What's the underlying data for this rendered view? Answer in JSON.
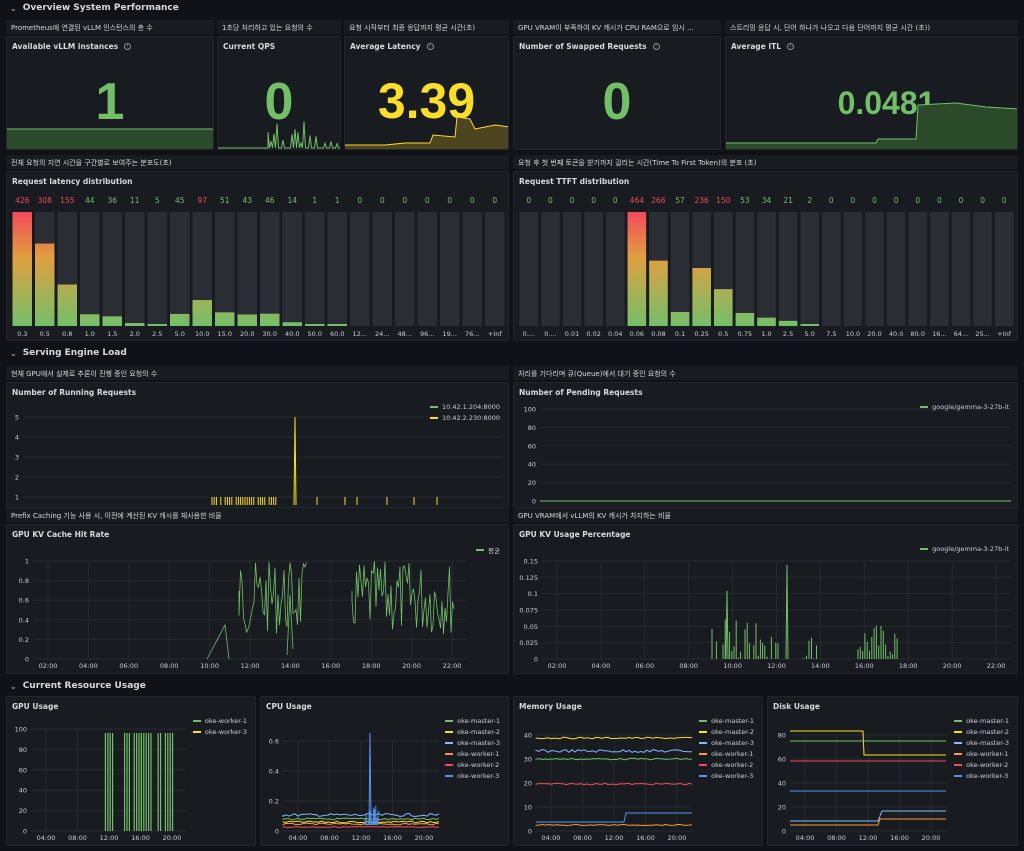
{
  "rows": {
    "overview": "Overview System Performance",
    "serving": "Serving Engine Load",
    "resource": "Current Resource Usage"
  },
  "descs": {
    "instances": "Prometheus에 연결된 vLLM 인스턴스의 총 수",
    "qps": "1초당 처리하고 있는 요청의 수",
    "latency": "요청 시작부터 최종 응답까지 평균 시간(초)",
    "swapped": "GPU VRAM이 부족하여 KV 캐시가 CPU RAM으로 임시 ...",
    "itl": "스트리밍 응답 시, 단어 하나가 나오고 다음 단어까지 평균 시간 (초))",
    "latdist": "전체 요청의 지연 시간을 구간별로 보여주는 분포도(초)",
    "ttft": "요청 후 첫 번째 토큰을 받기까지 걸리는 시간(Time To First Token)의 분포 (초)",
    "running": "현재 GPU에서 실제로 추론이 진행 중인 요청의 수",
    "pending": "처리를 기다리며 큐(Queue)에서 대기 중인 요청의 수",
    "hitrate": "Prefix Caching 기능 사용 시, 이전에 계산된 KV 캐시를 재사용한 비율",
    "kvusage": "GPU VRAM에서 vLLM의 KV 캐시가 차지하는 비율"
  },
  "stats": {
    "instances": {
      "title": "Available vLLM instances",
      "value": "1",
      "color": "#73bf69"
    },
    "qps": {
      "title": "Current QPS",
      "value": "0",
      "color": "#73bf69"
    },
    "latency": {
      "title": "Average Latency",
      "value": "3.39",
      "color": "#fade2a"
    },
    "swapped": {
      "title": "Number of Swapped Requests",
      "value": "0",
      "color": "#73bf69"
    },
    "itl": {
      "title": "Average ITL",
      "value": "0.0481",
      "color": "#73bf69"
    }
  },
  "latdist": {
    "title": "Request latency distribution",
    "labels": [
      "0.3",
      "0.5",
      "0.8",
      "1.0",
      "1.5",
      "2.0",
      "2.5",
      "5.0",
      "10.0",
      "15.0",
      "20.0",
      "30.0",
      "40.0",
      "50.0",
      "60.0",
      "12...",
      "24...",
      "48...",
      "96...",
      "19...",
      "76...",
      "+Inf"
    ],
    "values": [
      426,
      308,
      155,
      44,
      36,
      11,
      5,
      45,
      97,
      51,
      43,
      46,
      14,
      1,
      1,
      0,
      0,
      0,
      0,
      0,
      0,
      0
    ]
  },
  "ttft": {
    "title": "Request TTFT distribution",
    "labels": [
      "0....",
      "0....",
      "0.01",
      "0.02",
      "0.04",
      "0.06",
      "0.08",
      "0.1",
      "0.25",
      "0.5",
      "0.75",
      "1.0",
      "2.5",
      "5.0",
      "7.5",
      "10.0",
      "20.0",
      "40.0",
      "80.0",
      "16...",
      "64...",
      "25...",
      "+Inf"
    ],
    "values": [
      0,
      0,
      0,
      0,
      0,
      464,
      266,
      57,
      236,
      150,
      53,
      34,
      21,
      2,
      0,
      0,
      0,
      0,
      0,
      0,
      0,
      0,
      0
    ]
  },
  "running": {
    "title": "Number of Running Requests",
    "yticks": [
      "5",
      "4",
      "3",
      "2",
      "1"
    ],
    "legend": [
      {
        "name": "10.42.1.204:8000",
        "color": "#73bf69"
      },
      {
        "name": "10.42.2.230:8000",
        "color": "#fade2a"
      }
    ]
  },
  "pending": {
    "title": "Number of Pending Requests",
    "yticks": [
      "100",
      "80",
      "60",
      "40",
      "20",
      "0"
    ],
    "legend": [
      {
        "name": "google/gemma-3-27b-it",
        "color": "#73bf69"
      }
    ]
  },
  "hitrate": {
    "title": "GPU KV Cache Hit Rate",
    "yticks": [
      "1",
      "0.8",
      "0.6",
      "0.4",
      "0.2",
      "0"
    ],
    "xticks": [
      "02:00",
      "04:00",
      "06:00",
      "08:00",
      "10:00",
      "12:00",
      "14:00",
      "16:00",
      "18:00",
      "20:00",
      "22:00"
    ],
    "legend": [
      {
        "name": "평균",
        "color": "#73bf69"
      }
    ]
  },
  "kvusage": {
    "title": "GPU KV Usage Percentage",
    "yticks": [
      "0.15",
      "0.125",
      "0.1",
      "0.075",
      "0.05",
      "0.025",
      "0"
    ],
    "xticks": [
      "02:00",
      "04:00",
      "06:00",
      "08:00",
      "10:00",
      "12:00",
      "14:00",
      "16:00",
      "18:00",
      "20:00",
      "22:00"
    ],
    "legend": [
      {
        "name": "google/gemma-3-27b-it",
        "color": "#73bf69"
      }
    ]
  },
  "gpu": {
    "title": "GPU Usage",
    "yticks": [
      "100",
      "80",
      "60",
      "40",
      "20",
      "0"
    ],
    "xticks": [
      "04:00",
      "08:00",
      "12:00",
      "16:00",
      "20:00"
    ],
    "legend": [
      {
        "name": "oke-worker-1",
        "color": "#73bf69"
      },
      {
        "name": "oke-worker-3",
        "color": "#fade2a"
      }
    ]
  },
  "cpu": {
    "title": "CPU Usage",
    "yticks": [
      "0.6",
      "0.4",
      "0.2",
      "0"
    ],
    "xticks": [
      "04:00",
      "08:00",
      "12:00",
      "16:00",
      "20:00"
    ],
    "legend": [
      {
        "name": "oke-master-1",
        "color": "#73bf69"
      },
      {
        "name": "oke-master-2",
        "color": "#fade2a"
      },
      {
        "name": "oke-master-3",
        "color": "#8ab8ff"
      },
      {
        "name": "oke-worker-1",
        "color": "#ff9830"
      },
      {
        "name": "oke-worker-2",
        "color": "#f2495c"
      },
      {
        "name": "oke-worker-3",
        "color": "#5794f2"
      }
    ]
  },
  "memory": {
    "title": "Memory Usage",
    "yticks": [
      "40",
      "30",
      "20",
      "10",
      "0"
    ],
    "xticks": [
      "04:00",
      "08:00",
      "12:00",
      "16:00",
      "20:00"
    ],
    "legend": [
      {
        "name": "oke-master-1",
        "color": "#73bf69"
      },
      {
        "name": "oke-master-2",
        "color": "#fade2a"
      },
      {
        "name": "oke-master-3",
        "color": "#8ab8ff"
      },
      {
        "name": "oke-worker-1",
        "color": "#ff9830"
      },
      {
        "name": "oke-worker-2",
        "color": "#f2495c"
      },
      {
        "name": "oke-worker-3",
        "color": "#5794f2"
      }
    ]
  },
  "disk": {
    "title": "Disk Usage",
    "yticks": [
      "80",
      "60",
      "40",
      "20",
      "0"
    ],
    "xticks": [
      "04:00",
      "08:00",
      "12:00",
      "16:00",
      "20:00"
    ],
    "legend": [
      {
        "name": "oke-master-1",
        "color": "#73bf69"
      },
      {
        "name": "oke-master-2",
        "color": "#fade2a"
      },
      {
        "name": "oke-master-3",
        "color": "#8ab8ff"
      },
      {
        "name": "oke-worker-1",
        "color": "#ff9830"
      },
      {
        "name": "oke-worker-2",
        "color": "#f2495c"
      },
      {
        "name": "oke-worker-3",
        "color": "#5794f2"
      }
    ]
  },
  "chart_data": [
    {
      "type": "bar",
      "title": "Request latency distribution",
      "categories": [
        "0.3",
        "0.5",
        "0.8",
        "1.0",
        "1.5",
        "2.0",
        "2.5",
        "5.0",
        "10.0",
        "15.0",
        "20.0",
        "30.0",
        "40.0",
        "50.0",
        "60.0",
        "12...",
        "24...",
        "48...",
        "96...",
        "19...",
        "76...",
        "+Inf"
      ],
      "values": [
        426,
        308,
        155,
        44,
        36,
        11,
        5,
        45,
        97,
        51,
        43,
        46,
        14,
        1,
        1,
        0,
        0,
        0,
        0,
        0,
        0,
        0
      ]
    },
    {
      "type": "bar",
      "title": "Request TTFT distribution",
      "categories": [
        "0....",
        "0....",
        "0.01",
        "0.02",
        "0.04",
        "0.06",
        "0.08",
        "0.1",
        "0.25",
        "0.5",
        "0.75",
        "1.0",
        "2.5",
        "5.0",
        "7.5",
        "10.0",
        "20.0",
        "40.0",
        "80.0",
        "16...",
        "64...",
        "25...",
        "+Inf"
      ],
      "values": [
        0,
        0,
        0,
        0,
        0,
        464,
        266,
        57,
        236,
        150,
        53,
        34,
        21,
        2,
        0,
        0,
        0,
        0,
        0,
        0,
        0,
        0,
        0
      ]
    },
    {
      "type": "line",
      "title": "Number of Running Requests",
      "ylim": [
        0,
        5
      ],
      "series": [
        {
          "name": "10.42.1.204:8000"
        },
        {
          "name": "10.42.2.230:8000"
        }
      ]
    },
    {
      "type": "line",
      "title": "Number of Pending Requests",
      "ylim": [
        0,
        100
      ],
      "series": [
        {
          "name": "google/gemma-3-27b-it"
        }
      ]
    },
    {
      "type": "line",
      "title": "GPU KV Cache Hit Rate",
      "ylim": [
        0,
        1
      ],
      "series": [
        {
          "name": "평균"
        }
      ]
    },
    {
      "type": "line",
      "title": "GPU KV Usage Percentage",
      "ylim": [
        0,
        0.15
      ],
      "series": [
        {
          "name": "google/gemma-3-27b-it"
        }
      ]
    },
    {
      "type": "line",
      "title": "GPU Usage",
      "ylim": [
        0,
        100
      ],
      "series": [
        {
          "name": "oke-worker-1"
        },
        {
          "name": "oke-worker-3"
        }
      ]
    },
    {
      "type": "line",
      "title": "CPU Usage",
      "ylim": [
        0,
        0.6
      ],
      "series": [
        {
          "name": "oke-master-1"
        },
        {
          "name": "oke-master-2"
        },
        {
          "name": "oke-master-3"
        },
        {
          "name": "oke-worker-1"
        },
        {
          "name": "oke-worker-2"
        },
        {
          "name": "oke-worker-3"
        }
      ]
    },
    {
      "type": "line",
      "title": "Memory Usage",
      "ylim": [
        0,
        40
      ],
      "series": [
        {
          "name": "oke-master-1"
        },
        {
          "name": "oke-master-2"
        },
        {
          "name": "oke-master-3"
        },
        {
          "name": "oke-worker-1"
        },
        {
          "name": "oke-worker-2"
        },
        {
          "name": "oke-worker-3"
        }
      ]
    },
    {
      "type": "line",
      "title": "Disk Usage",
      "ylim": [
        0,
        80
      ],
      "series": [
        {
          "name": "oke-master-1"
        },
        {
          "name": "oke-master-2"
        },
        {
          "name": "oke-master-3"
        },
        {
          "name": "oke-worker-1"
        },
        {
          "name": "oke-worker-2"
        },
        {
          "name": "oke-worker-3"
        }
      ]
    }
  ]
}
